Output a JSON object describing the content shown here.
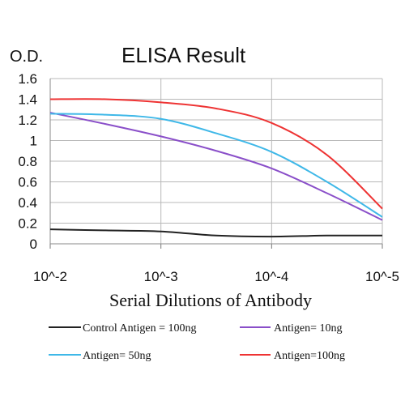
{
  "chart_data": {
    "type": "line",
    "title": "ELISA Result",
    "ylabel": "O.D.",
    "xlabel": "Serial Dilutions of Antibody",
    "x_tick_labels": [
      "10^-2",
      "10^-3",
      "10^-4",
      "10^-5"
    ],
    "x": [
      -2,
      -2.5,
      -3,
      -3.5,
      -4,
      -4.5,
      -5
    ],
    "x_scale": "log10 (decreasing dilution factor)",
    "y_ticks": [
      "0",
      "0.2",
      "0.4",
      "0.6",
      "0.8",
      "1",
      "1.2",
      "1.4",
      "1.6"
    ],
    "ylim": [
      0,
      1.6
    ],
    "grid": "vertical and horizontal",
    "legend_position": "bottom",
    "series": [
      {
        "name": "Control Antigen = 100ng",
        "color": "#222222",
        "values": [
          0.14,
          0.13,
          0.12,
          0.08,
          0.07,
          0.08,
          0.08
        ]
      },
      {
        "name": "Antigen= 10ng",
        "color": "#8a4fc9",
        "values": [
          1.27,
          1.16,
          1.04,
          0.9,
          0.73,
          0.49,
          0.23
        ]
      },
      {
        "name": "Antigen= 50ng",
        "color": "#3fb8e8",
        "values": [
          1.26,
          1.25,
          1.21,
          1.07,
          0.89,
          0.6,
          0.26
        ]
      },
      {
        "name": "Antigen=100ng",
        "color": "#ee3333",
        "values": [
          1.4,
          1.4,
          1.37,
          1.31,
          1.17,
          0.86,
          0.34
        ]
      }
    ]
  }
}
